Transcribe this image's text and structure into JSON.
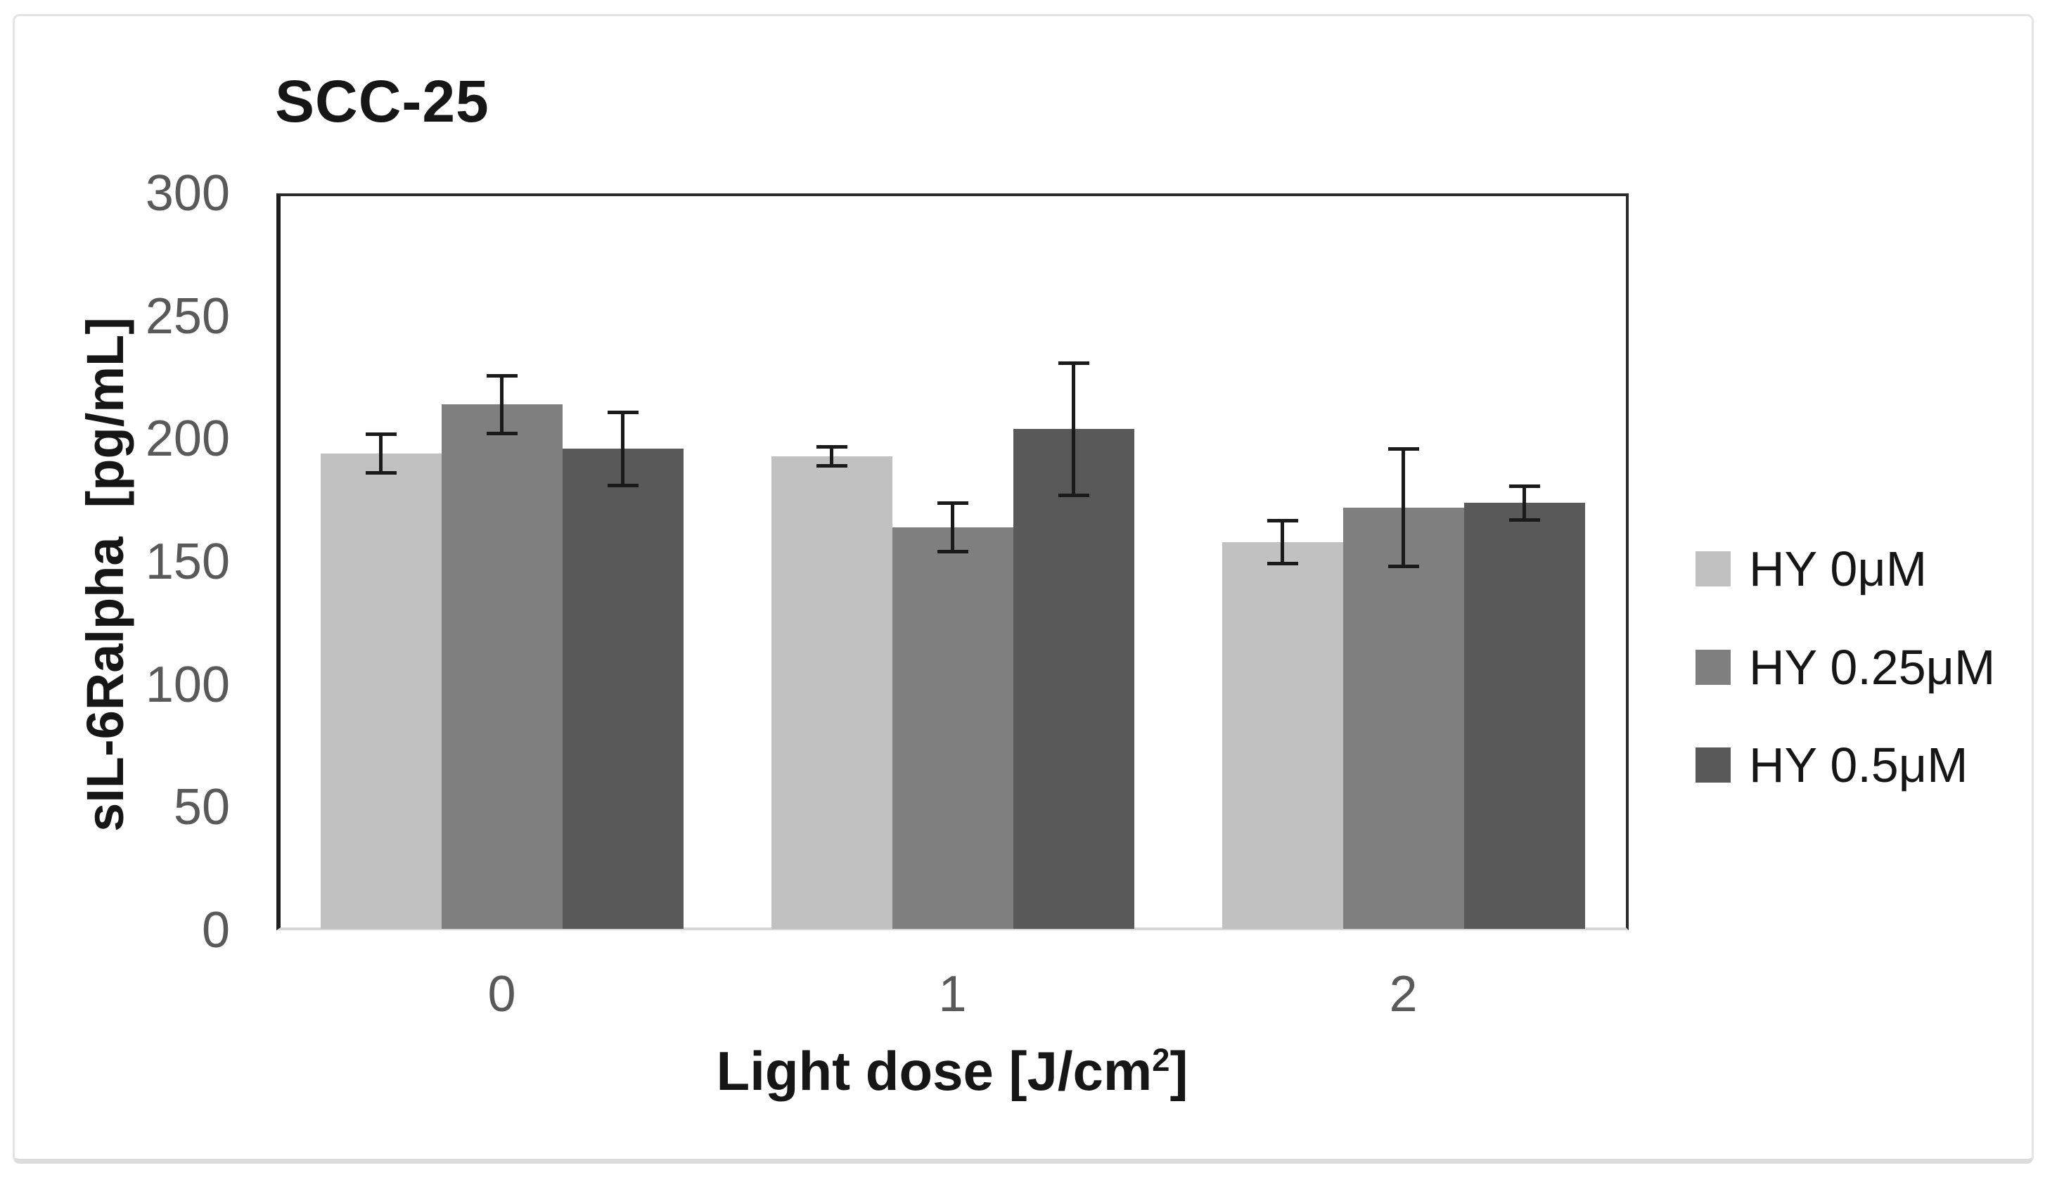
{
  "window": {
    "background": "#ffffff",
    "frame_border_color": "#e4e4e4"
  },
  "chart_data": {
    "type": "bar",
    "title": "SCC-25",
    "ylabel": "sIL-6Ralpha  [pg/mL]",
    "xlabel": "Light dose [J/cm²]",
    "xlabel_prefix": "Light dose [J/cm",
    "xlabel_sup": "2",
    "xlabel_suffix": "]",
    "categories": [
      "0",
      "1",
      "2"
    ],
    "series": [
      {
        "name": "HY 0μM",
        "color": "#c1c1c1",
        "values": [
          194,
          193,
          158
        ],
        "errors": [
          8,
          4,
          9
        ]
      },
      {
        "name": "HY 0.25μM",
        "color": "#7f7f7f",
        "values": [
          214,
          164,
          172
        ],
        "errors": [
          12,
          10,
          24
        ]
      },
      {
        "name": "HY 0.5μM",
        "color": "#595959",
        "values": [
          196,
          204,
          174
        ],
        "errors": [
          15,
          27,
          7
        ]
      }
    ],
    "ylim": [
      0,
      300
    ],
    "yticks": [
      0,
      50,
      100,
      150,
      200,
      250,
      300
    ],
    "grid": false,
    "legend_position": "right",
    "tick_label_color": "#595959",
    "error_bar_color": "#1a1a1a"
  }
}
